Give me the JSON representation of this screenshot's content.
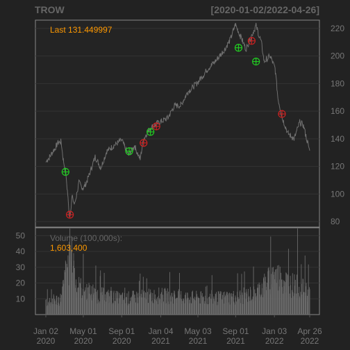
{
  "header": {
    "symbol": "TROW",
    "range": "[2020-01-02/2022-04-26]"
  },
  "price_panel": {
    "last_label": "Last 131.449997"
  },
  "volume_panel": {
    "label": "Volume (100,000s):",
    "value": "1,603,400"
  },
  "colors": {
    "background": "#222222",
    "panel_border": "#888888",
    "grid": "#333333",
    "price_line": "#707070",
    "volume_bar": "#6a6a6a",
    "header_text": "#666666",
    "axis_text": "#777777",
    "accent": "#ff9900",
    "buy_marker": "#22cc22",
    "sell_marker": "#cc2222"
  },
  "chart_data": {
    "type": "line",
    "title": "TROW",
    "x_range": [
      "2020-01-02",
      "2022-04-26"
    ],
    "price": {
      "ylim": [
        76,
        226
      ],
      "yticks": [
        80,
        100,
        120,
        140,
        160,
        180,
        200,
        220
      ],
      "anchors": [
        [
          "2020-01-02",
          123
        ],
        [
          "2020-01-20",
          129
        ],
        [
          "2020-02-10",
          137
        ],
        [
          "2020-02-20",
          138
        ],
        [
          "2020-02-26",
          126
        ],
        [
          "2020-03-05",
          116
        ],
        [
          "2020-03-12",
          100
        ],
        [
          "2020-03-16",
          86
        ],
        [
          "2020-03-19",
          84
        ],
        [
          "2020-03-26",
          98
        ],
        [
          "2020-04-03",
          92
        ],
        [
          "2020-04-17",
          108
        ],
        [
          "2020-05-01",
          104
        ],
        [
          "2020-05-14",
          110
        ],
        [
          "2020-06-08",
          127
        ],
        [
          "2020-06-26",
          119
        ],
        [
          "2020-07-15",
          131
        ],
        [
          "2020-08-12",
          136
        ],
        [
          "2020-09-01",
          139
        ],
        [
          "2020-09-23",
          128
        ],
        [
          "2020-10-12",
          135
        ],
        [
          "2020-10-30",
          125
        ],
        [
          "2020-11-10",
          140
        ],
        [
          "2020-12-01",
          148
        ],
        [
          "2020-12-31",
          152
        ],
        [
          "2021-01-27",
          155
        ],
        [
          "2021-02-16",
          164
        ],
        [
          "2021-03-08",
          164
        ],
        [
          "2021-04-01",
          174
        ],
        [
          "2021-05-03",
          181
        ],
        [
          "2021-06-01",
          190
        ],
        [
          "2021-07-01",
          197
        ],
        [
          "2021-07-28",
          205
        ],
        [
          "2021-08-15",
          212
        ],
        [
          "2021-08-31",
          223
        ],
        [
          "2021-09-15",
          215
        ],
        [
          "2021-10-04",
          205
        ],
        [
          "2021-10-22",
          215
        ],
        [
          "2021-11-05",
          222
        ],
        [
          "2021-11-22",
          210
        ],
        [
          "2021-12-01",
          196
        ],
        [
          "2021-12-20",
          200
        ],
        [
          "2022-01-05",
          191
        ],
        [
          "2022-01-14",
          170
        ],
        [
          "2022-01-27",
          156
        ],
        [
          "2022-02-15",
          144
        ],
        [
          "2022-03-07",
          140
        ],
        [
          "2022-03-25",
          152
        ],
        [
          "2022-04-05",
          150
        ],
        [
          "2022-04-26",
          131.45
        ]
      ]
    },
    "signals": [
      {
        "date": "2020-03-05",
        "price": 116,
        "type": "buy"
      },
      {
        "date": "2020-03-19",
        "price": 85,
        "type": "sell"
      },
      {
        "date": "2020-09-25",
        "price": 131,
        "type": "buy"
      },
      {
        "date": "2020-11-10",
        "price": 137,
        "type": "sell"
      },
      {
        "date": "2020-12-02",
        "price": 145,
        "type": "buy"
      },
      {
        "date": "2020-12-21",
        "price": 149,
        "type": "sell"
      },
      {
        "date": "2021-09-10",
        "price": 206,
        "type": "buy"
      },
      {
        "date": "2021-10-22",
        "price": 211,
        "type": "sell"
      },
      {
        "date": "2021-11-05",
        "price": 196,
        "type": "buy"
      },
      {
        "date": "2022-01-27",
        "price": 158,
        "type": "sell"
      }
    ],
    "volume": {
      "units": "100,000s",
      "ylim": [
        0,
        55
      ],
      "yticks": [
        10,
        20,
        30,
        40,
        50
      ],
      "baseline": [
        [
          "2020-01-02",
          8
        ],
        [
          "2020-02-20",
          10
        ],
        [
          "2020-03-10",
          30
        ],
        [
          "2020-03-25",
          35
        ],
        [
          "2020-04-10",
          18
        ],
        [
          "2020-06-01",
          13
        ],
        [
          "2020-09-01",
          10
        ],
        [
          "2020-12-31",
          12
        ],
        [
          "2021-06-01",
          10
        ],
        [
          "2021-09-01",
          11
        ],
        [
          "2021-11-01",
          13
        ],
        [
          "2022-01-05",
          25
        ],
        [
          "2022-02-15",
          20
        ],
        [
          "2022-04-26",
          14
        ]
      ],
      "spikes": [
        [
          "2020-03-20",
          44
        ],
        [
          "2020-03-23",
          41
        ],
        [
          "2020-10-30",
          26
        ],
        [
          "2021-12-17",
          28
        ],
        [
          "2022-03-18",
          72
        ]
      ],
      "last": 16.034
    },
    "xticks": [
      {
        "date": "2020-01-02",
        "line1": "Jan 02",
        "line2": "2020"
      },
      {
        "date": "2020-05-01",
        "line1": "May 01",
        "line2": "2020"
      },
      {
        "date": "2020-09-01",
        "line1": "Sep 01",
        "line2": "2020"
      },
      {
        "date": "2021-01-04",
        "line1": "Jan 04",
        "line2": "2021"
      },
      {
        "date": "2021-05-03",
        "line1": "May 03",
        "line2": "2021"
      },
      {
        "date": "2021-09-01",
        "line1": "Sep 01",
        "line2": "2021"
      },
      {
        "date": "2022-01-03",
        "line1": "Jan 03",
        "line2": "2022"
      },
      {
        "date": "2022-04-26",
        "line1": "Apr 26",
        "line2": "2022"
      }
    ]
  }
}
